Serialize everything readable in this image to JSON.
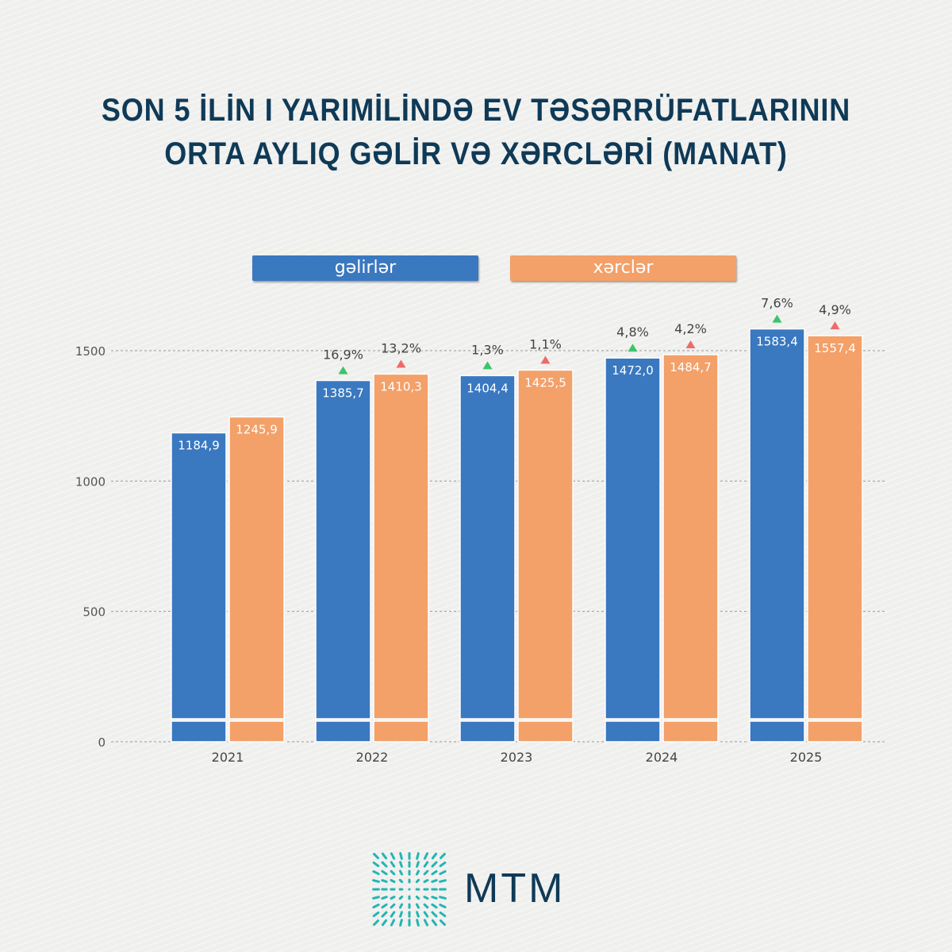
{
  "title_line1": "SON 5 İLİN I YARIMİLİNDƏ EV TƏSƏRRÜFATLARININ",
  "title_line2": "ORTA AYLIQ GƏLİR VƏ XƏRCLƏRİ (MANAT)",
  "logo_text": "MTM",
  "colors": {
    "income": "#3a78c0",
    "expense": "#f3a069",
    "up_income": "#3cc46a",
    "up_expense": "#f06a6a"
  },
  "chart_data": {
    "type": "bar",
    "title": "SON 5 İLİN I YARIMİLİNDƏ EV TƏSƏRRÜFATLARININ ORTA AYLIQ GƏLİR VƏ XƏRCLƏRİ (MANAT)",
    "categories": [
      "2021",
      "2022",
      "2023",
      "2024",
      "2025"
    ],
    "series": [
      {
        "name": "gəlirlər",
        "values": [
          1184.9,
          1385.7,
          1404.4,
          1472.0,
          1583.4
        ],
        "labels": [
          "1184,9",
          "1385,7",
          "1404,4",
          "1472,0",
          "1583,4"
        ],
        "growth": [
          "",
          "16,9%",
          "1,3%",
          "4,8%",
          "7,6%"
        ]
      },
      {
        "name": "xərclər",
        "values": [
          1245.9,
          1410.3,
          1425.5,
          1484.7,
          1557.4
        ],
        "labels": [
          "1245,9",
          "1410,3",
          "1425,5",
          "1484,7",
          "1557,4"
        ],
        "growth": [
          "",
          "13,2%",
          "1,1%",
          "4,2%",
          "4,9%"
        ]
      }
    ],
    "yticks": [
      0,
      500,
      1000,
      1500
    ],
    "ylim": [
      0,
      1500
    ],
    "grid": true,
    "legend": "top-center"
  }
}
